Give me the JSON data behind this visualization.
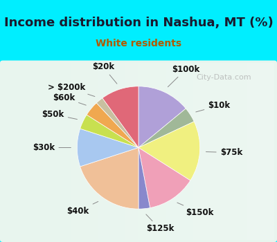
{
  "title": "Income distribution in Nashua, MT (%)",
  "subtitle": "White residents",
  "title_color": "#1a1a2e",
  "subtitle_color": "#b05a00",
  "bg_cyan": "#00eeff",
  "chart_panel_color": "#dff0e8",
  "watermark": "City-Data.com",
  "labels": [
    "$100k",
    "$10k",
    "$75k",
    "$150k",
    "$125k",
    "$40k",
    "$30k",
    "$50k",
    "$60k",
    "> $200k",
    "$20k"
  ],
  "values": [
    14,
    4,
    16,
    13,
    3,
    20,
    10,
    4,
    4,
    2,
    10
  ],
  "colors": [
    "#b0a0d8",
    "#a0b898",
    "#f0f080",
    "#f0a0b8",
    "#8888cc",
    "#f0c098",
    "#a8c8f0",
    "#c8e050",
    "#f0a850",
    "#c8c0a0",
    "#e06878"
  ],
  "label_fontsize": 8.5,
  "title_fontsize": 13,
  "subtitle_fontsize": 10
}
